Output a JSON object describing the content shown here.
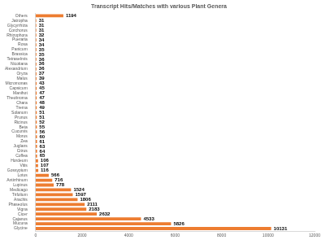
{
  "chart_data": {
    "type": "bar",
    "title": "Transcript Hits/Matches with various Plant Genera",
    "orientation": "horizontal",
    "categories": [
      "Others",
      "Jatropha",
      "Glycyrrhiza",
      "Corchorus",
      "Rhizophora",
      "Pueraria",
      "Rosa",
      "Panicum",
      "Brassica",
      "Tetraselmis",
      "Nicotiana",
      "Alexandrium",
      "Oryza",
      "Malus",
      "Micromonas",
      "Capsicum",
      "Manihot",
      "Theobroma",
      "Chara",
      "Trema",
      "Solanum",
      "Prunus",
      "Ricinus",
      "Beta",
      "Cucumis",
      "Morus",
      "Zea",
      "Juglans",
      "Citrus",
      "Coffea",
      "Hordeum",
      "Vitis",
      "Gossypium",
      "Lotus",
      "Antirrhinum",
      "Lupinus",
      "Medicago",
      "Trifolium",
      "Arachis",
      "Phaseolus",
      "Vigna",
      "Cicer",
      "Cajanus",
      "Mucuna",
      "Glycine"
    ],
    "values": [
      1194,
      31,
      31,
      31,
      32,
      34,
      34,
      35,
      35,
      36,
      36,
      36,
      37,
      39,
      43,
      45,
      47,
      47,
      48,
      49,
      51,
      51,
      52,
      55,
      56,
      60,
      61,
      63,
      64,
      65,
      106,
      107,
      116,
      566,
      716,
      778,
      1524,
      1597,
      1806,
      2111,
      2183,
      2632,
      4533,
      5826,
      10131
    ],
    "color": "#ed7d31",
    "xlim": [
      0,
      12000
    ],
    "xticks": [
      0,
      2000,
      4000,
      6000,
      8000,
      10000,
      12000
    ],
    "grid": false,
    "data_labels": true
  }
}
